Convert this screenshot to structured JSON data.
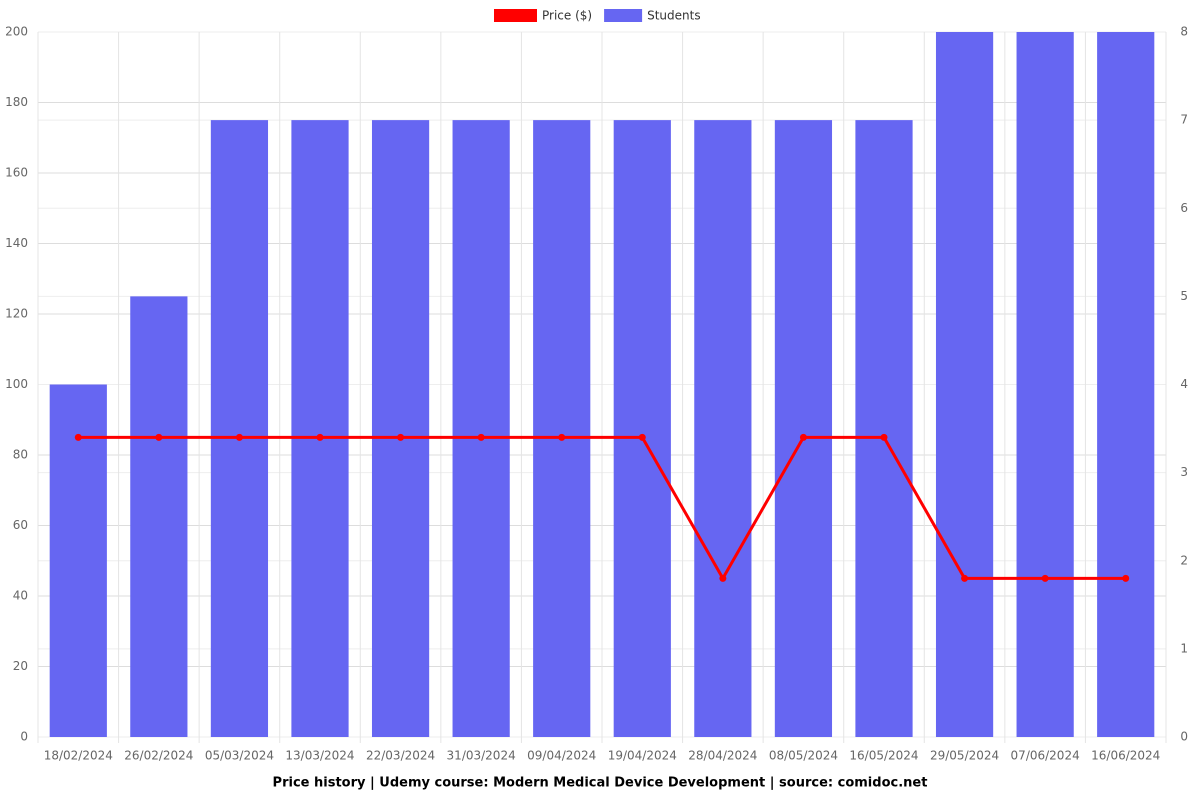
{
  "chart_data": {
    "type": "bar",
    "title": "Price history | Udemy course: Modern Medical Device Development | source: comidoc.net",
    "categories": [
      "18/02/2024",
      "26/02/2024",
      "05/03/2024",
      "13/03/2024",
      "22/03/2024",
      "31/03/2024",
      "09/04/2024",
      "19/04/2024",
      "28/04/2024",
      "08/05/2024",
      "16/05/2024",
      "29/05/2024",
      "07/06/2024",
      "16/06/2024"
    ],
    "series": [
      {
        "name": "Price ($)",
        "type": "line",
        "color": "#ff0000",
        "values": [
          85,
          85,
          85,
          85,
          85,
          85,
          85,
          85,
          45,
          85,
          85,
          45,
          45,
          45
        ]
      },
      {
        "name": "Students",
        "type": "bar",
        "color": "#6666f2",
        "axis": "y2",
        "values": [
          4,
          5,
          7,
          7,
          7,
          7,
          7,
          7,
          7,
          7,
          7,
          8,
          8,
          8
        ]
      }
    ],
    "ylim": [
      0,
      200
    ],
    "yticks": [
      0,
      20,
      40,
      60,
      80,
      100,
      120,
      140,
      160,
      180,
      200
    ],
    "y2lim": [
      0,
      8
    ],
    "y2ticks": [
      0,
      1,
      2,
      3,
      4,
      5,
      6,
      7,
      8
    ],
    "grid": true,
    "legend": "top"
  }
}
